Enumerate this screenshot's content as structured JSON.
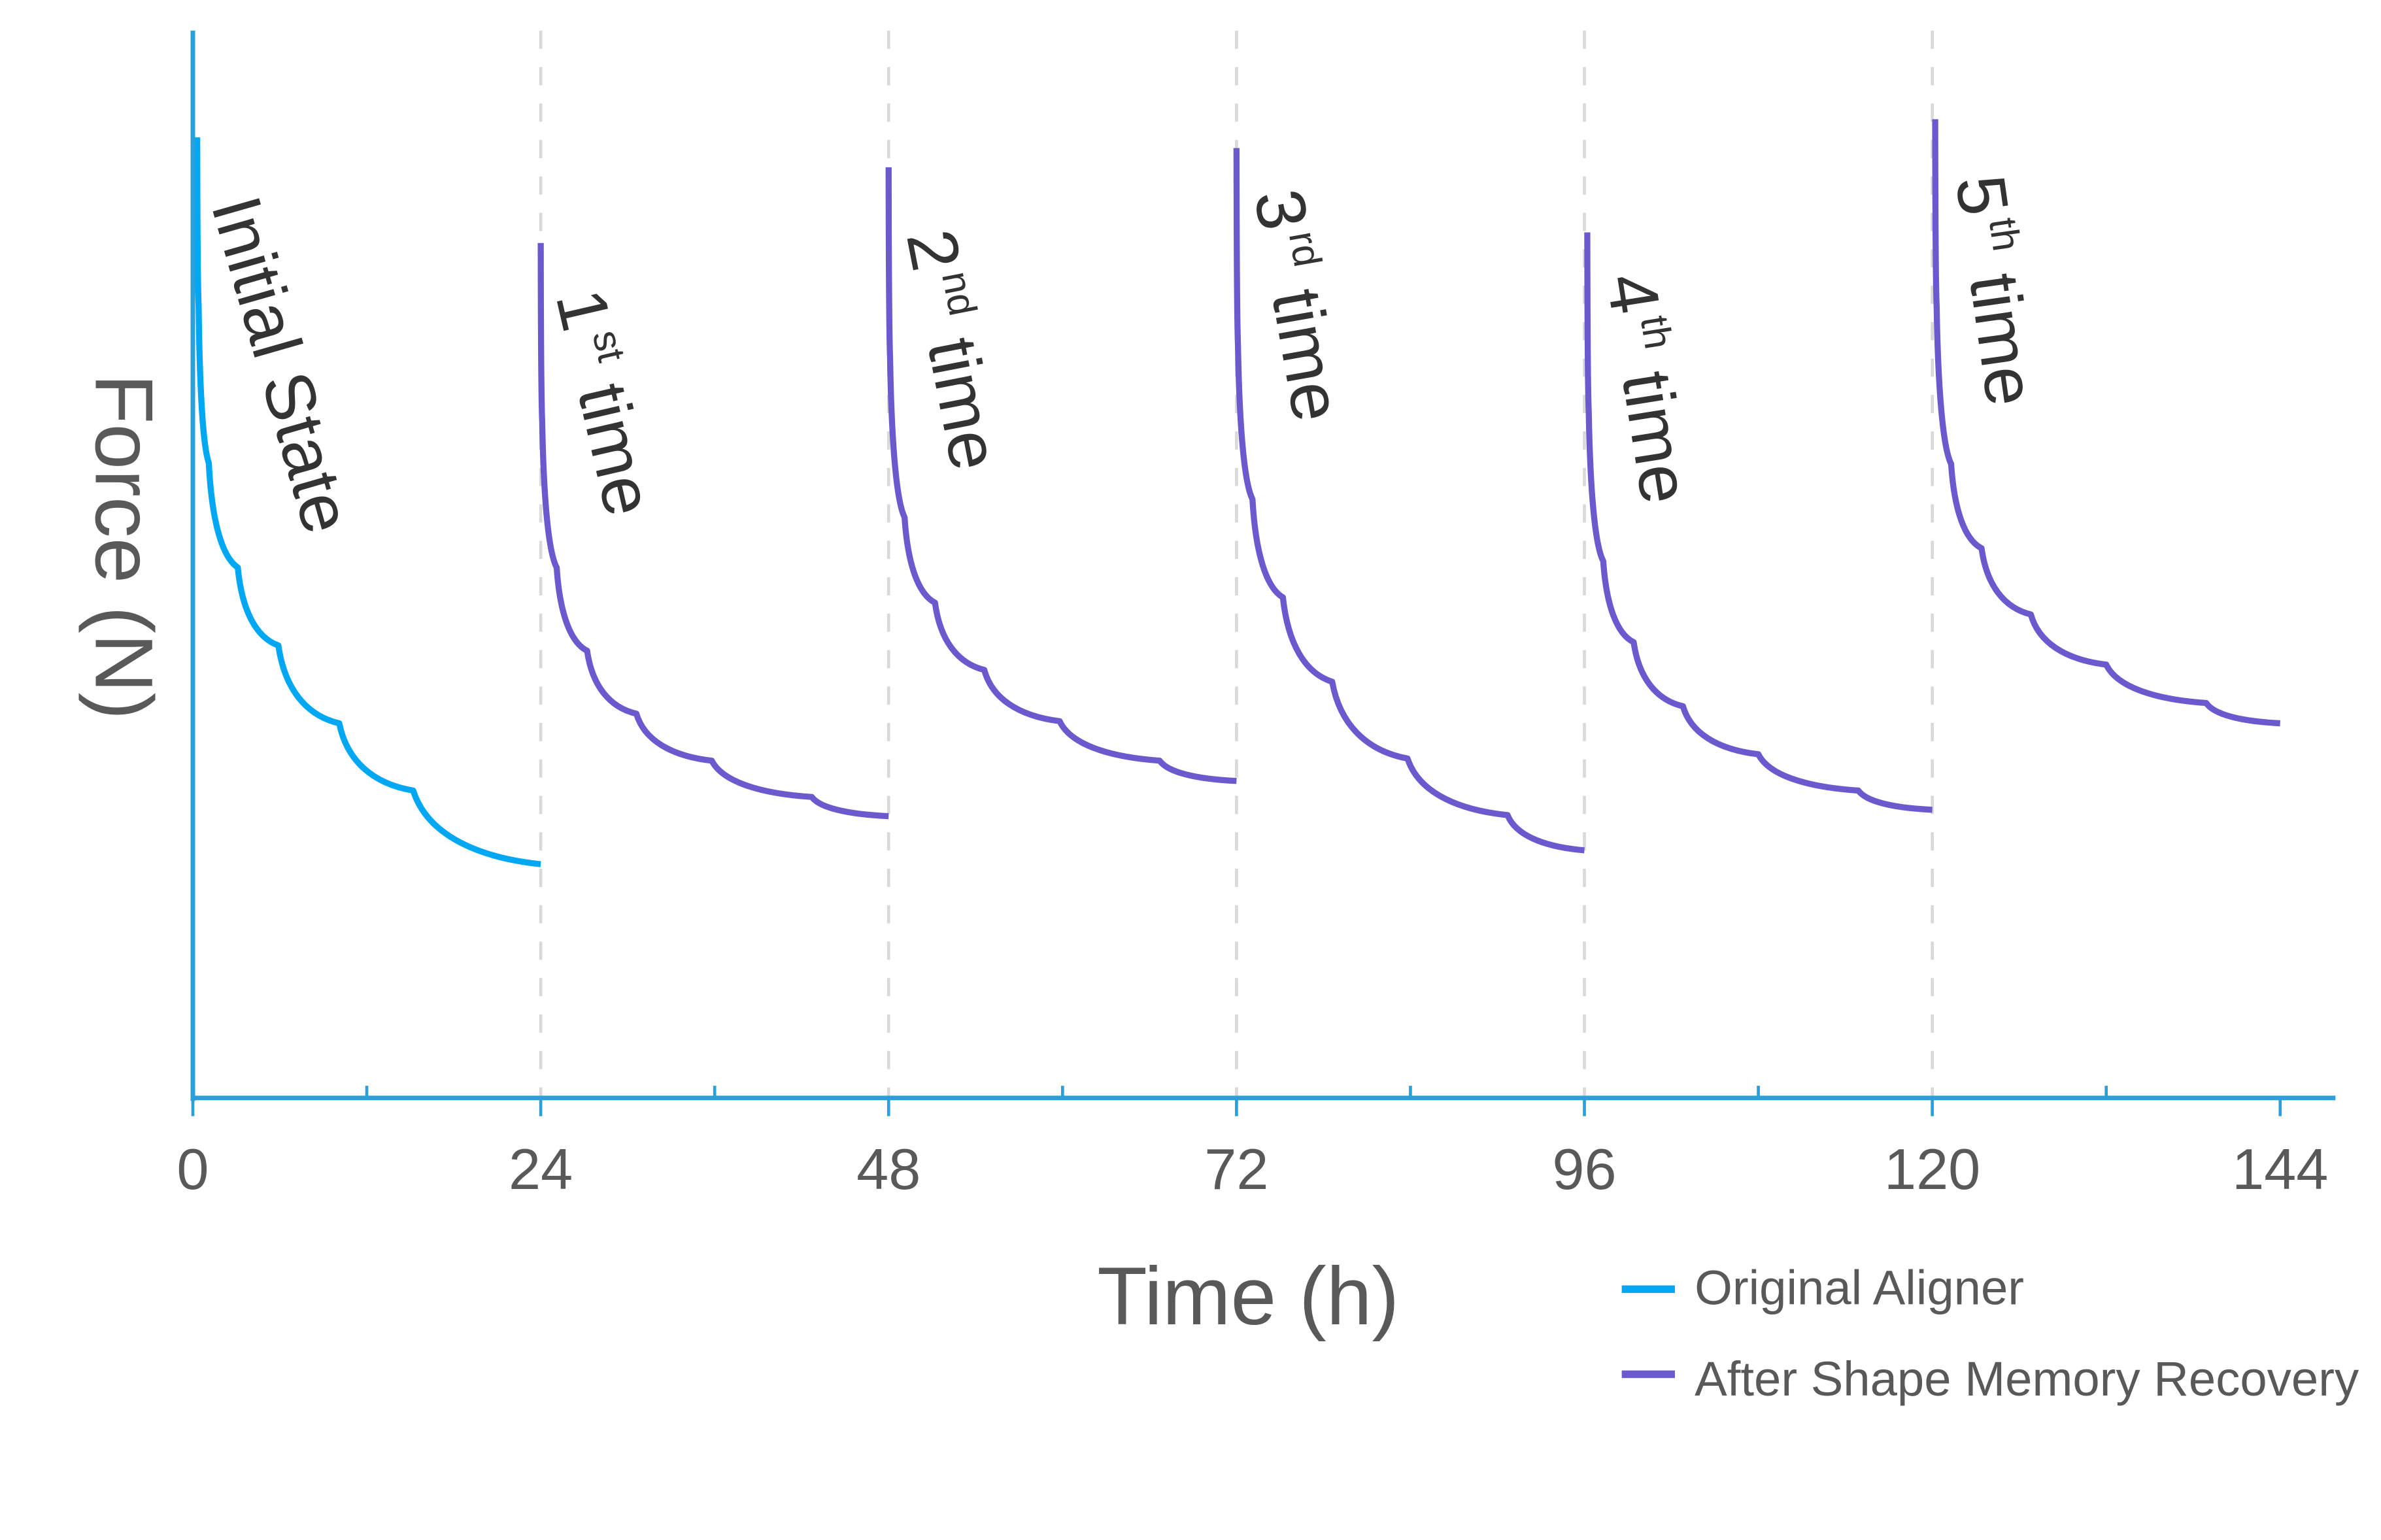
{
  "chart_data": {
    "type": "line",
    "xlabel": "Time (h)",
    "ylabel": "Force (N)",
    "xlim": [
      0,
      148
    ],
    "ylim": [
      0,
      1
    ],
    "x_ticks": [
      "0",
      "24",
      "48",
      "72",
      "96",
      "120",
      "144"
    ],
    "x_tick_values": [
      0,
      24,
      48,
      72,
      96,
      120,
      144
    ],
    "x_minor_ticks": [
      12,
      36,
      60,
      84,
      108,
      132
    ],
    "y_ticks_shown": false,
    "grid": "dashed vertical lines at 24, 48, 72, 96, 120",
    "legend_position": "bottom-right",
    "colors": {
      "original": "#00a8f3",
      "recovery": "#6a5acd",
      "axis": "#2a9fd8",
      "grid": "#d9d9d9",
      "text": "#595959",
      "label": "#333333"
    },
    "series": [
      {
        "name": "Original Aligner",
        "color_key": "original",
        "segments": [
          {
            "label": {
              "num": "Initial State",
              "sup": "",
              "rest": ""
            },
            "x": [
              0.3,
              0.4,
              1.1,
              3.1,
              5.9,
              10.1,
              15.2,
              24
            ],
            "y": [
              0.9,
              0.742,
              0.595,
              0.497,
              0.424,
              0.351,
              0.288,
              0.219
            ]
          }
        ]
      },
      {
        "name": "After Shape Memory Recovery",
        "color_key": "recovery",
        "segments": [
          {
            "label": {
              "num": "1",
              "sup": "st",
              "rest": "time"
            },
            "x": [
              24,
              24.1,
              25.1,
              27.2,
              30.6,
              35.8,
              42.7,
              48
            ],
            "y": [
              0.801,
              0.634,
              0.497,
              0.419,
              0.36,
              0.316,
              0.282,
              0.264
            ]
          },
          {
            "label": {
              "num": "2",
              "sup": "nd",
              "rest": "time"
            },
            "x": [
              48,
              48.1,
              49.1,
              51.2,
              54.6,
              59.8,
              66.7,
              72
            ],
            "y": [
              0.872,
              0.694,
              0.544,
              0.464,
              0.401,
              0.353,
              0.316,
              0.297
            ]
          },
          {
            "label": {
              "num": "3",
              "sup": "rd",
              "rest": "time"
            },
            "x": [
              72,
              72.1,
              73.1,
              75.2,
              78.6,
              83.8,
              90.7,
              96
            ],
            "y": [
              0.89,
              0.706,
              0.561,
              0.469,
              0.39,
              0.318,
              0.265,
              0.232
            ]
          },
          {
            "label": {
              "num": "4",
              "sup": "th",
              "rest": "time"
            },
            "x": [
              96.2,
              96.3,
              97.3,
              99.4,
              102.8,
              108,
              114.9,
              120
            ],
            "y": [
              0.811,
              0.643,
              0.503,
              0.427,
              0.367,
              0.322,
              0.288,
              0.27
            ]
          },
          {
            "label": {
              "num": "5",
              "sup": "th",
              "rest": "time"
            },
            "x": [
              120.2,
              120.3,
              121.3,
              123.4,
              126.8,
              132,
              138.9,
              144
            ],
            "y": [
              0.917,
              0.742,
              0.594,
              0.515,
              0.453,
              0.406,
              0.37,
              0.351
            ]
          }
        ]
      }
    ]
  }
}
